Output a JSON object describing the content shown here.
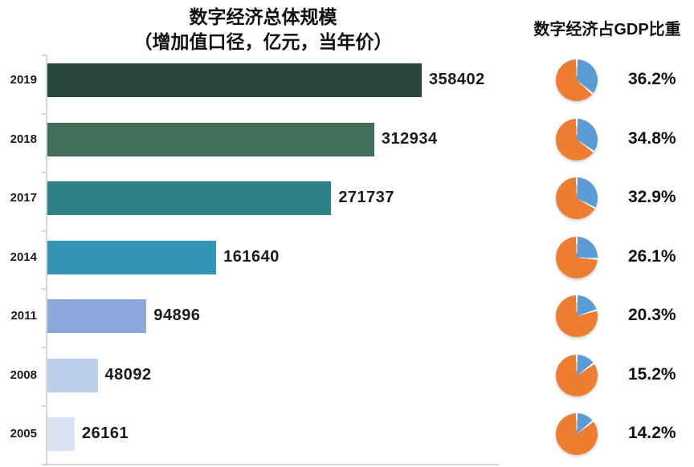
{
  "left_chart": {
    "title_line1": "数字经济总体规模",
    "title_line2": "（增加值口径，亿元，当年价）"
  },
  "right_chart": {
    "title": "数字经济占GDP比重"
  },
  "colors": {
    "bar_colors": [
      "#28463a",
      "#3f6f58",
      "#2d8189",
      "#3494b6",
      "#8aa8dc",
      "#bccfec",
      "#dae3f1"
    ],
    "pie_blue": "#5b9bd5",
    "pie_orange": "#ed7d31",
    "axis": "#d6d6d6"
  },
  "chart_data": {
    "type": "bar",
    "orientation": "horizontal",
    "title": "数字经济总体规模（增加值口径，亿元，当年价）",
    "secondary_title": "数字经济占GDP比重",
    "categories": [
      "2019",
      "2018",
      "2017",
      "2014",
      "2011",
      "2008",
      "2005"
    ],
    "series": [
      {
        "name": "数字经济总体规模（亿元）",
        "type": "bar",
        "values": [
          358402,
          312934,
          271737,
          161640,
          94896,
          48092,
          26161
        ],
        "value_labels": [
          "358402",
          "312934",
          "271737",
          "161640",
          "94896",
          "48092",
          "26161"
        ]
      },
      {
        "name": "数字经济占GDP比重（%）",
        "type": "pie",
        "values": [
          36.2,
          34.8,
          32.9,
          26.1,
          20.3,
          15.2,
          14.2
        ],
        "value_labels": [
          "36.2%",
          "34.8%",
          "32.9%",
          "26.1%",
          "20.3%",
          "15.2%",
          "14.2%"
        ]
      }
    ],
    "xlim": [
      0,
      358402
    ],
    "grid": false,
    "legend": "none"
  }
}
